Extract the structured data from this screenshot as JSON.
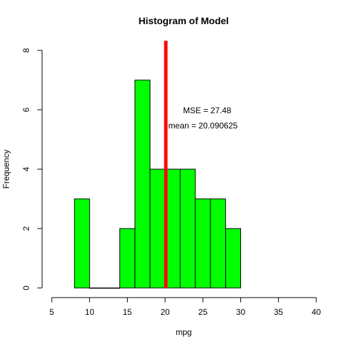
{
  "chart_data": {
    "type": "bar",
    "title": "Histogram of Model",
    "xlabel": "mpg",
    "ylabel": "Frequency",
    "xlim": [
      5,
      40
    ],
    "ylim": [
      0,
      8
    ],
    "x_ticks": [
      "5",
      "10",
      "15",
      "20",
      "25",
      "30",
      "35",
      "40"
    ],
    "y_ticks": [
      "0",
      "2",
      "4",
      "6",
      "8"
    ],
    "bins": [
      {
        "from": 8,
        "to": 10,
        "count": 3
      },
      {
        "from": 10,
        "to": 12,
        "count": 0
      },
      {
        "from": 12,
        "to": 14,
        "count": 0
      },
      {
        "from": 14,
        "to": 16,
        "count": 2
      },
      {
        "from": 16,
        "to": 18,
        "count": 7
      },
      {
        "from": 18,
        "to": 20,
        "count": 4
      },
      {
        "from": 20,
        "to": 22,
        "count": 4
      },
      {
        "from": 22,
        "to": 24,
        "count": 4
      },
      {
        "from": 24,
        "to": 26,
        "count": 3
      },
      {
        "from": 26,
        "to": 28,
        "count": 3
      },
      {
        "from": 28,
        "to": 30,
        "count": 2
      }
    ],
    "mean_line": {
      "x": 20.090625,
      "color": "#ff0000"
    },
    "annotations": [
      "MSE =  27.48",
      "mean =  20.090625"
    ],
    "bar_color": "#00ff00",
    "grid": false
  }
}
